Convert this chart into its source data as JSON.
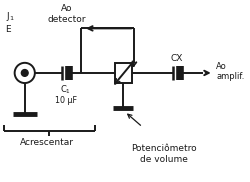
{
  "bg_color": "#ffffff",
  "fig_width": 2.5,
  "fig_height": 1.82,
  "dpi": 100,
  "labels": {
    "J1_E": "J$_1$\nE",
    "ao_detector": "Ao\ndetector",
    "C1": "C$_1$",
    "C1_value": "10 μF",
    "CX": "CX",
    "ao_amplif": "Ao\namplif.",
    "acrescentar": "Acrescentar",
    "potenciometro": "Potenciômetro\nde volume"
  },
  "colors": {
    "line": "#1a1a1a",
    "text": "#1a1a1a",
    "bg": "#f5f5f5"
  }
}
